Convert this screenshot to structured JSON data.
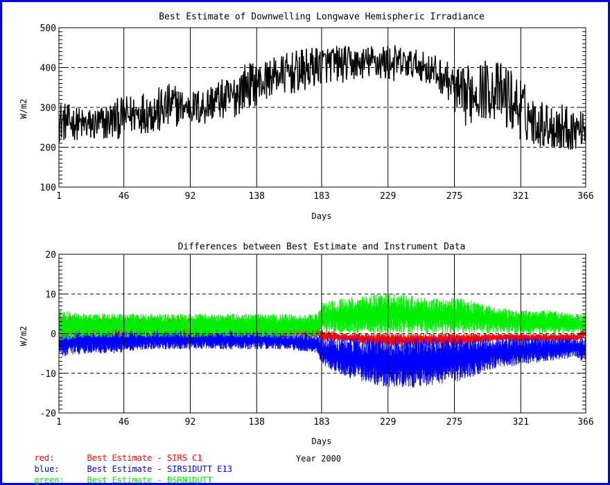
{
  "colors": {
    "frame": "#0000dd",
    "red": "#ff0000",
    "blue": "#0000ff",
    "green": "#00ee00",
    "black": "#000000"
  },
  "chart_data": [
    {
      "type": "line",
      "title": "Best Estimate of Downwelling Longwave Hemispheric Irradiance",
      "xlabel": "Days",
      "ylabel": "W/m2",
      "xlim": [
        1,
        366
      ],
      "ylim": [
        100,
        500
      ],
      "xticks": [
        1,
        46,
        92,
        138,
        183,
        229,
        275,
        321,
        366
      ],
      "yticks": [
        100,
        200,
        300,
        400,
        500
      ],
      "grid": true,
      "series": [
        {
          "color": "#000000",
          "x": [
            1,
            10,
            20,
            30,
            40,
            50,
            60,
            70,
            80,
            90,
            100,
            110,
            120,
            130,
            140,
            150,
            160,
            170,
            180,
            190,
            200,
            210,
            220,
            230,
            240,
            250,
            260,
            270,
            280,
            290,
            300,
            310,
            320,
            330,
            340,
            350,
            360,
            366
          ],
          "low": [
            210,
            215,
            205,
            205,
            215,
            225,
            230,
            225,
            245,
            260,
            245,
            270,
            255,
            290,
            300,
            330,
            320,
            330,
            350,
            360,
            355,
            370,
            365,
            360,
            365,
            370,
            340,
            320,
            230,
            260,
            255,
            235,
            210,
            200,
            190,
            185,
            190,
            210
          ],
          "high": [
            330,
            310,
            300,
            310,
            330,
            340,
            350,
            360,
            375,
            340,
            360,
            375,
            380,
            420,
            420,
            430,
            440,
            455,
            460,
            465,
            460,
            455,
            465,
            470,
            455,
            450,
            440,
            420,
            400,
            430,
            420,
            420,
            390,
            330,
            320,
            320,
            300,
            290
          ],
          "mean": [
            265,
            262,
            255,
            258,
            270,
            280,
            290,
            290,
            305,
            300,
            300,
            320,
            320,
            355,
            360,
            380,
            385,
            390,
            405,
            410,
            408,
            410,
            415,
            412,
            410,
            408,
            390,
            370,
            320,
            345,
            345,
            330,
            300,
            265,
            255,
            250,
            245,
            250
          ]
        }
      ]
    },
    {
      "type": "scatter",
      "title": "Differences between Best Estimate and Instrument Data",
      "xlabel": "Days",
      "ylabel": "W/m2",
      "xlim": [
        1,
        366
      ],
      "ylim": [
        -20,
        20
      ],
      "xticks": [
        1,
        46,
        92,
        138,
        183,
        229,
        275,
        321,
        366
      ],
      "yticks": [
        -20,
        -10,
        0,
        10,
        20
      ],
      "grid": true,
      "series": [
        {
          "name": "red",
          "color": "#ff0000",
          "x": [
            1,
            20,
            40,
            60,
            80,
            100,
            120,
            140,
            160,
            180,
            183,
            200,
            220,
            240,
            260,
            280,
            300,
            320,
            340,
            360,
            366
          ],
          "low": [
            -2,
            -1,
            -1,
            -1,
            -1,
            -1,
            -1,
            -1,
            -1,
            -1,
            -2,
            -2,
            -3,
            -3,
            -3,
            -3,
            -2,
            -2,
            -2,
            -2,
            -1
          ],
          "high": [
            5,
            4,
            4,
            4,
            4,
            4,
            4,
            4,
            3,
            3,
            1,
            0,
            0,
            0,
            0,
            0,
            0,
            0,
            0,
            0,
            2
          ]
        },
        {
          "name": "blue",
          "color": "#0000ff",
          "x": [
            1,
            20,
            40,
            60,
            80,
            100,
            120,
            140,
            160,
            180,
            183,
            200,
            220,
            240,
            260,
            280,
            300,
            320,
            340,
            360,
            366
          ],
          "low": [
            -6,
            -5,
            -5,
            -4,
            -4,
            -4,
            -4,
            -4,
            -4,
            -5,
            -8,
            -11,
            -13,
            -14,
            -13,
            -12,
            -9,
            -8,
            -7,
            -6,
            -8
          ],
          "high": [
            1,
            1,
            1,
            1,
            1,
            1,
            1,
            1,
            0,
            0,
            -1,
            -1,
            -1,
            -1,
            -1,
            -1,
            -1,
            -1,
            -1,
            -1,
            0
          ]
        },
        {
          "name": "green",
          "color": "#00ee00",
          "x": [
            1,
            20,
            40,
            60,
            80,
            100,
            120,
            140,
            160,
            180,
            183,
            200,
            220,
            240,
            260,
            280,
            300,
            320,
            340,
            360,
            366
          ],
          "low": [
            -2,
            -1,
            -1,
            -1,
            -1,
            -1,
            -1,
            -1,
            -1,
            -1,
            0,
            0,
            0,
            0,
            0,
            0,
            0,
            0,
            0,
            0,
            0
          ],
          "high": [
            6,
            5,
            5,
            5,
            5,
            5,
            5,
            5,
            5,
            5,
            8,
            9,
            10,
            10,
            9,
            9,
            7,
            6,
            6,
            5,
            5
          ]
        }
      ]
    }
  ],
  "legend": [
    {
      "key": "red:",
      "text": "Best Estimate - SIRS C1",
      "color": "#ff0000"
    },
    {
      "key": "blue:",
      "text": "Best Estimate - SIRS1DUTT E13",
      "color": "#0000ff"
    },
    {
      "key": "green:",
      "text": "Best Estimate - BSRN1DUTT",
      "color": "#00ee00"
    }
  ],
  "footer_label": "Year 2000"
}
